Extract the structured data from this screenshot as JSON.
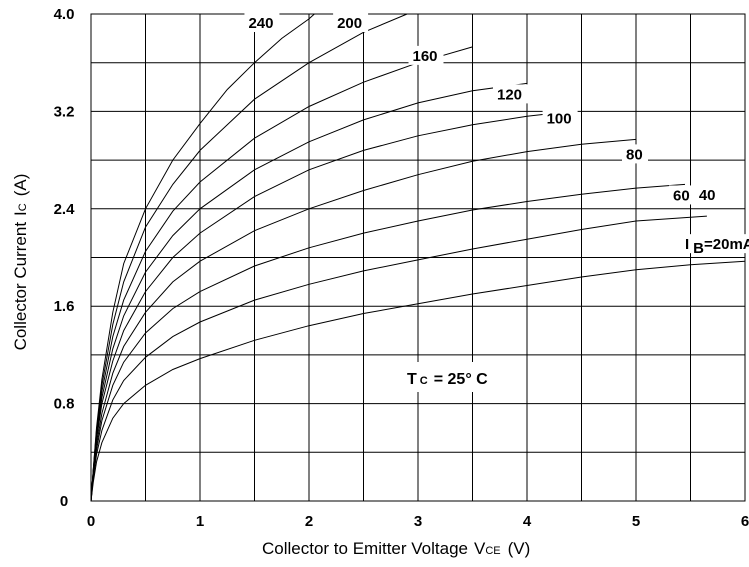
{
  "chart_data": {
    "type": "line",
    "xlabel": "Collector to Emitter Voltage",
    "xlabel_symbol": "V",
    "xlabel_sub": "CE",
    "xlabel_unit": "(V)",
    "ylabel": "Collector Current",
    "ylabel_symbol": "I",
    "ylabel_sub": "C",
    "ylabel_unit": "(A)",
    "xlim": [
      0,
      6
    ],
    "ylim": [
      0,
      4.0
    ],
    "x_ticks": [
      "0",
      "1",
      "2",
      "3",
      "4",
      "5",
      "6"
    ],
    "y_ticks": [
      "0",
      "0.8",
      "1.6",
      "2.4",
      "3.2",
      "4.0"
    ],
    "grid": true,
    "annotation": {
      "main": "T",
      "sub": "C",
      "rest": "= 25° C"
    },
    "series": [
      {
        "name": "240",
        "points": [
          [
            0.02,
            0.25
          ],
          [
            0.05,
            0.6
          ],
          [
            0.1,
            1.0
          ],
          [
            0.2,
            1.55
          ],
          [
            0.3,
            1.95
          ],
          [
            0.5,
            2.4
          ],
          [
            0.75,
            2.8
          ],
          [
            1.0,
            3.1
          ],
          [
            1.25,
            3.38
          ],
          [
            1.5,
            3.6
          ],
          [
            1.75,
            3.8
          ],
          [
            2.0,
            3.96
          ],
          [
            2.05,
            4.0
          ]
        ]
      },
      {
        "name": "200",
        "points": [
          [
            0.02,
            0.25
          ],
          [
            0.05,
            0.58
          ],
          [
            0.1,
            0.95
          ],
          [
            0.2,
            1.45
          ],
          [
            0.3,
            1.8
          ],
          [
            0.5,
            2.25
          ],
          [
            0.75,
            2.6
          ],
          [
            1.0,
            2.88
          ],
          [
            1.5,
            3.3
          ],
          [
            2.0,
            3.6
          ],
          [
            2.5,
            3.85
          ],
          [
            2.9,
            4.0
          ]
        ]
      },
      {
        "name": "160",
        "points": [
          [
            0.02,
            0.24
          ],
          [
            0.05,
            0.55
          ],
          [
            0.1,
            0.9
          ],
          [
            0.2,
            1.35
          ],
          [
            0.3,
            1.65
          ],
          [
            0.5,
            2.05
          ],
          [
            0.75,
            2.38
          ],
          [
            1.0,
            2.62
          ],
          [
            1.5,
            2.98
          ],
          [
            2.0,
            3.24
          ],
          [
            2.5,
            3.44
          ],
          [
            3.0,
            3.6
          ],
          [
            3.5,
            3.73
          ]
        ]
      },
      {
        "name": "120",
        "points": [
          [
            0.02,
            0.24
          ],
          [
            0.05,
            0.52
          ],
          [
            0.1,
            0.85
          ],
          [
            0.2,
            1.25
          ],
          [
            0.3,
            1.52
          ],
          [
            0.5,
            1.88
          ],
          [
            0.75,
            2.18
          ],
          [
            1.0,
            2.4
          ],
          [
            1.5,
            2.72
          ],
          [
            2.0,
            2.95
          ],
          [
            2.5,
            3.13
          ],
          [
            3.0,
            3.27
          ],
          [
            3.5,
            3.37
          ],
          [
            4.0,
            3.43
          ]
        ]
      },
      {
        "name": "100",
        "points": [
          [
            0.02,
            0.23
          ],
          [
            0.05,
            0.5
          ],
          [
            0.1,
            0.8
          ],
          [
            0.2,
            1.15
          ],
          [
            0.3,
            1.4
          ],
          [
            0.5,
            1.72
          ],
          [
            0.75,
            2.0
          ],
          [
            1.0,
            2.2
          ],
          [
            1.5,
            2.5
          ],
          [
            2.0,
            2.72
          ],
          [
            2.5,
            2.88
          ],
          [
            3.0,
            3.0
          ],
          [
            3.5,
            3.09
          ],
          [
            4.0,
            3.16
          ],
          [
            4.4,
            3.2
          ]
        ]
      },
      {
        "name": "80",
        "points": [
          [
            0.02,
            0.22
          ],
          [
            0.05,
            0.46
          ],
          [
            0.1,
            0.72
          ],
          [
            0.2,
            1.05
          ],
          [
            0.3,
            1.27
          ],
          [
            0.5,
            1.55
          ],
          [
            0.75,
            1.8
          ],
          [
            1.0,
            1.97
          ],
          [
            1.5,
            2.22
          ],
          [
            2.0,
            2.4
          ],
          [
            2.5,
            2.55
          ],
          [
            3.0,
            2.68
          ],
          [
            3.5,
            2.79
          ],
          [
            4.0,
            2.87
          ],
          [
            4.5,
            2.93
          ],
          [
            5.0,
            2.97
          ]
        ]
      },
      {
        "name": "60",
        "points": [
          [
            0.02,
            0.2
          ],
          [
            0.05,
            0.42
          ],
          [
            0.1,
            0.66
          ],
          [
            0.2,
            0.95
          ],
          [
            0.3,
            1.14
          ],
          [
            0.5,
            1.38
          ],
          [
            0.75,
            1.58
          ],
          [
            1.0,
            1.72
          ],
          [
            1.5,
            1.93
          ],
          [
            2.0,
            2.08
          ],
          [
            2.5,
            2.2
          ],
          [
            3.0,
            2.3
          ],
          [
            3.5,
            2.39
          ],
          [
            4.0,
            2.46
          ],
          [
            4.5,
            2.52
          ],
          [
            5.0,
            2.57
          ],
          [
            5.45,
            2.6
          ]
        ]
      },
      {
        "name": "40",
        "points": [
          [
            0.02,
            0.18
          ],
          [
            0.05,
            0.38
          ],
          [
            0.1,
            0.58
          ],
          [
            0.2,
            0.83
          ],
          [
            0.3,
            0.99
          ],
          [
            0.5,
            1.18
          ],
          [
            0.75,
            1.35
          ],
          [
            1.0,
            1.47
          ],
          [
            1.5,
            1.65
          ],
          [
            2.0,
            1.78
          ],
          [
            2.5,
            1.89
          ],
          [
            3.0,
            1.98
          ],
          [
            3.5,
            2.07
          ],
          [
            4.0,
            2.15
          ],
          [
            4.5,
            2.23
          ],
          [
            5.0,
            2.3
          ],
          [
            5.65,
            2.34
          ]
        ]
      },
      {
        "name": "IB=20mA",
        "label_main": "I",
        "label_sub": "B",
        "label_rest": "=20mA",
        "points": [
          [
            0.02,
            0.15
          ],
          [
            0.05,
            0.32
          ],
          [
            0.1,
            0.48
          ],
          [
            0.2,
            0.68
          ],
          [
            0.3,
            0.8
          ],
          [
            0.5,
            0.95
          ],
          [
            0.75,
            1.08
          ],
          [
            1.0,
            1.17
          ],
          [
            1.5,
            1.32
          ],
          [
            2.0,
            1.44
          ],
          [
            2.5,
            1.54
          ],
          [
            3.0,
            1.62
          ],
          [
            3.5,
            1.7
          ],
          [
            4.0,
            1.77
          ],
          [
            4.5,
            1.84
          ],
          [
            5.0,
            1.9
          ],
          [
            5.5,
            1.94
          ],
          [
            6.0,
            1.97
          ]
        ]
      }
    ]
  }
}
